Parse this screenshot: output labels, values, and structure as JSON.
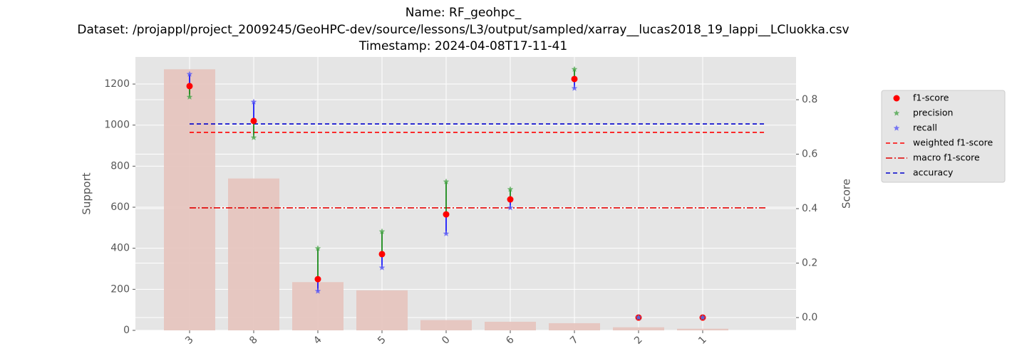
{
  "chart_data": {
    "type": "bar_scatter",
    "title": [
      "Name: RF_geohpc_",
      "Dataset: /projappl/project_2009245/GeoHPC-dev/source/lessons/L3/output/sampled/xarray__lucas2018_19_lappi__LCluokka.csv",
      "Timestamp: 2024-04-08T17-11-41"
    ],
    "categories": [
      "3",
      "8",
      "4",
      "5",
      "0",
      "6",
      "7",
      "2",
      "1"
    ],
    "values": [
      1272,
      740,
      235,
      195,
      50,
      42,
      35,
      15,
      8
    ],
    "color": "#e6c3bd",
    "ylabel": "Support",
    "y2label": "Score",
    "ylim": [
      0,
      1332
    ],
    "yticks": [
      0,
      200,
      400,
      600,
      800,
      1000,
      1200
    ],
    "y2lim": [
      -0.047,
      0.957
    ],
    "y2ticks": [
      {
        "value": 0,
        "label": "0.0"
      },
      0.2,
      0.4,
      0.6,
      0.8
    ],
    "grid": true,
    "legend": "right",
    "series": [
      {
        "name": "f1-score",
        "color": "#ff0000",
        "marker": "circle",
        "axis": "y2",
        "values": [
          0.85,
          0.722,
          0.141,
          0.233,
          0.379,
          0.434,
          0.876,
          0,
          0
        ]
      },
      {
        "name": "precision",
        "color": "#4ca64c",
        "marker": "star",
        "axis": "y2",
        "values": [
          0.81,
          0.661,
          0.254,
          0.316,
          0.499,
          0.471,
          0.912,
          0,
          0
        ],
        "error_color": "#008000"
      },
      {
        "name": "recall",
        "color": "#5a5af5",
        "marker": "star",
        "axis": "y2",
        "values": [
          0.894,
          0.792,
          0.097,
          0.183,
          0.308,
          0.403,
          0.842,
          0,
          0
        ],
        "error_color": "#0000ff"
      }
    ],
    "reference_lines": [
      {
        "name": "weighted f1-score",
        "value": 0.68,
        "color": "#ff0000",
        "dash": "6,4"
      },
      {
        "name": "macro f1-score",
        "value": 0.403,
        "color": "#e00000",
        "dash": "9,3,2,3"
      },
      {
        "name": "accuracy",
        "value": 0.711,
        "color": "#0000cc",
        "dash": "6,4"
      }
    ]
  }
}
